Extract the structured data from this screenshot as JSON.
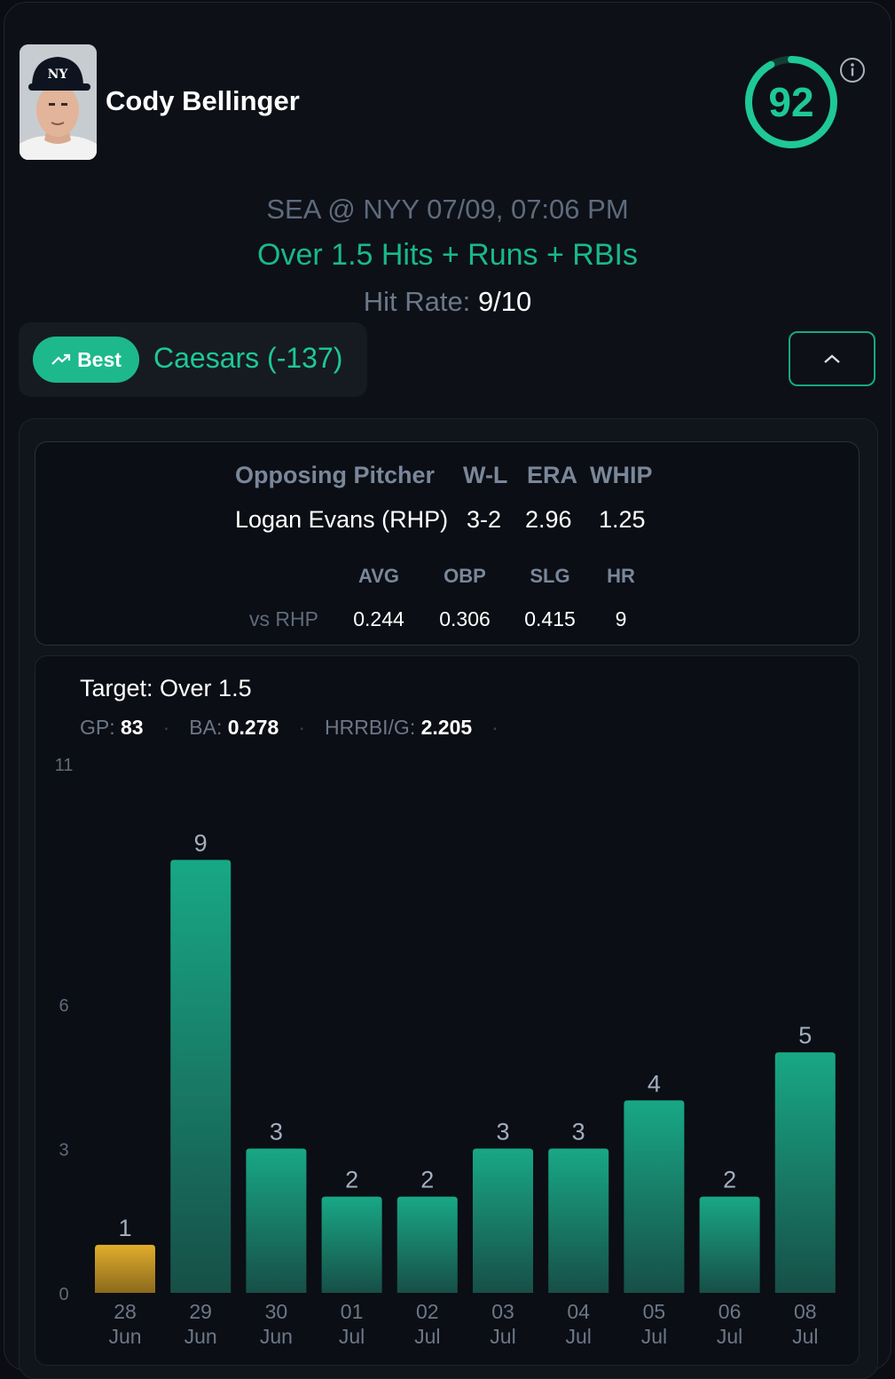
{
  "player": {
    "name": "Cody Bellinger",
    "score": "92",
    "score_pct": 0.92
  },
  "game": {
    "matchup": "SEA @ NYY 07/09, 07:06 PM",
    "prop": "Over 1.5 Hits + Runs + RBIs",
    "hit_rate_label": "Hit Rate:",
    "hit_rate_value": "9/10"
  },
  "book": {
    "badge_label": "Best",
    "name": "Caesars (-137)"
  },
  "pitcher": {
    "headers": [
      "Opposing Pitcher",
      "W-L",
      "ERA",
      "WHIP"
    ],
    "values": [
      "Logan Evans (RHP)",
      "3-2",
      "2.96",
      "1.25"
    ],
    "split_headers": [
      "AVG",
      "OBP",
      "SLG",
      "HR"
    ],
    "split_label": "vs RHP",
    "split_values": [
      "0.244",
      "0.306",
      "0.415",
      "9"
    ]
  },
  "summary": {
    "target": "Target: Over 1.5",
    "gp_label": "GP:",
    "gp": "83",
    "ba_label": "BA:",
    "ba": "0.278",
    "hrrbi_label": "HRRBI/G:",
    "hrrbi": "2.205"
  },
  "colors": {
    "accent": "#1ec897",
    "hit": "#15a584",
    "miss": "#e0a82a",
    "background": "#0b0d13"
  },
  "chart_data": {
    "type": "bar",
    "categories": [
      [
        "28",
        "Jun"
      ],
      [
        "29",
        "Jun"
      ],
      [
        "30",
        "Jun"
      ],
      [
        "01",
        "Jul"
      ],
      [
        "02",
        "Jul"
      ],
      [
        "03",
        "Jul"
      ],
      [
        "04",
        "Jul"
      ],
      [
        "05",
        "Jul"
      ],
      [
        "06",
        "Jul"
      ],
      [
        "08",
        "Jul"
      ]
    ],
    "values": [
      1,
      9,
      3,
      2,
      2,
      3,
      3,
      4,
      2,
      5
    ],
    "yticks": [
      "0",
      "3",
      "6",
      "11"
    ],
    "ylim": [
      0,
      11
    ],
    "threshold": 1.5,
    "grid": false
  }
}
